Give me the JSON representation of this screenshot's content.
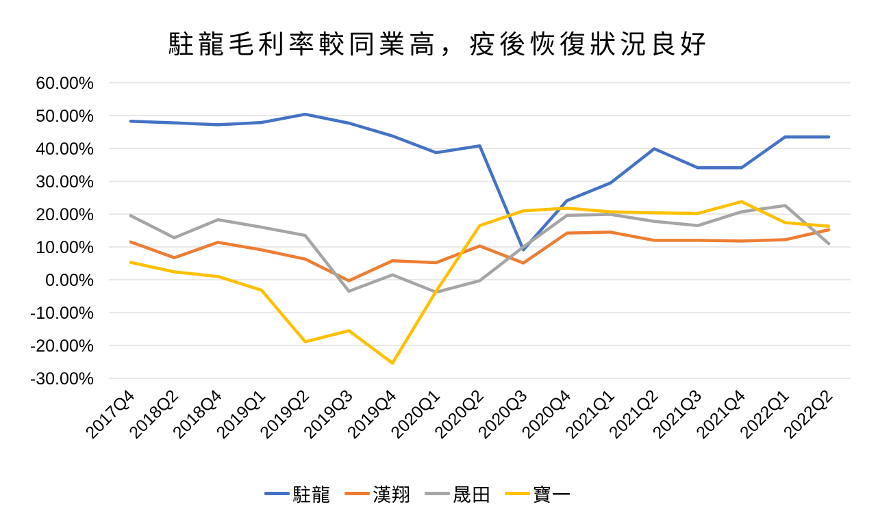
{
  "title": "駐龍毛利率較同業高，疫後恢復狀況良好",
  "chart_data": {
    "type": "line",
    "title": "駐龍毛利率較同業高，疫後恢復狀況良好",
    "categories": [
      "2017Q4",
      "2018Q2",
      "2018Q4",
      "2019Q1",
      "2019Q2",
      "2019Q3",
      "2019Q4",
      "2020Q1",
      "2020Q2",
      "2020Q3",
      "2020Q4",
      "2021Q1",
      "2021Q2",
      "2021Q3",
      "2021Q4",
      "2022Q1",
      "2022Q2"
    ],
    "series": [
      {
        "name": "駐龍",
        "color": "#4472C4",
        "values": [
          48.3,
          47.8,
          47.2,
          47.9,
          50.4,
          47.7,
          43.8,
          38.7,
          40.8,
          9.1,
          24.1,
          29.5,
          39.9,
          34.1,
          34.1,
          43.5,
          43.5
        ]
      },
      {
        "name": "漢翔",
        "color": "#ED7D31",
        "values": [
          11.5,
          6.7,
          11.4,
          9.1,
          6.3,
          -0.3,
          5.8,
          5.2,
          10.3,
          5.1,
          14.2,
          14.5,
          12.0,
          12.0,
          11.8,
          12.2,
          15.2
        ]
      },
      {
        "name": "晟田",
        "color": "#A5A5A5",
        "values": [
          19.5,
          12.8,
          18.3,
          16.0,
          13.5,
          -3.5,
          1.5,
          -3.8,
          -0.3,
          10.0,
          19.6,
          19.9,
          17.8,
          16.5,
          20.7,
          22.6,
          11.0
        ]
      },
      {
        "name": "寶一",
        "color": "#FFC000",
        "values": [
          5.3,
          2.4,
          1.0,
          -3.2,
          -18.9,
          -15.5,
          -25.4,
          -3.5,
          16.5,
          21.0,
          21.8,
          20.7,
          20.4,
          20.2,
          23.8,
          17.4,
          16.3
        ]
      }
    ],
    "ylim": [
      -30,
      60
    ],
    "y_tick_step": 10,
    "y_tick_format": "0.00%",
    "grid": true,
    "gridline_color": "#D9D9D9",
    "axis_label_color": "#000000",
    "legend_position": "bottom",
    "x_label_rotation": 45
  }
}
